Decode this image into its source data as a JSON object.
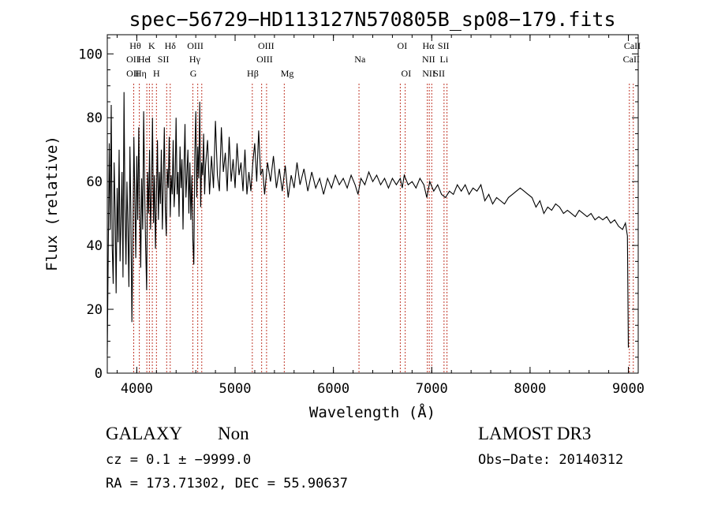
{
  "chart_data": {
    "type": "line",
    "title": "spec−56729−HD113127N570805B_sp08−179.fits",
    "xlabel": "Wavelength (Å)",
    "ylabel": "Flux (relative)",
    "xlim": [
      3700,
      9100
    ],
    "ylim": [
      0,
      106
    ],
    "xticks": [
      4000,
      5000,
      6000,
      7000,
      8000,
      9000
    ],
    "yticks": [
      0,
      20,
      40,
      60,
      80,
      100
    ],
    "grid": false,
    "series": [
      {
        "name": "spectrum",
        "points": [
          [
            3700,
            6
          ],
          [
            3710,
            38
          ],
          [
            3720,
            72
          ],
          [
            3730,
            45
          ],
          [
            3740,
            84
          ],
          [
            3750,
            40
          ],
          [
            3760,
            28
          ],
          [
            3770,
            66
          ],
          [
            3780,
            50
          ],
          [
            3790,
            25
          ],
          [
            3800,
            58
          ],
          [
            3810,
            41
          ],
          [
            3820,
            70
          ],
          [
            3830,
            35
          ],
          [
            3840,
            48
          ],
          [
            3850,
            63
          ],
          [
            3860,
            30
          ],
          [
            3870,
            88
          ],
          [
            3880,
            52
          ],
          [
            3890,
            34
          ],
          [
            3900,
            60
          ],
          [
            3910,
            45
          ],
          [
            3920,
            27
          ],
          [
            3930,
            71
          ],
          [
            3940,
            50
          ],
          [
            3950,
            16
          ],
          [
            3960,
            40
          ],
          [
            3970,
            74
          ],
          [
            3980,
            55
          ],
          [
            3990,
            36
          ],
          [
            4000,
            68
          ],
          [
            4010,
            48
          ],
          [
            4020,
            77
          ],
          [
            4030,
            52
          ],
          [
            4040,
            33
          ],
          [
            4050,
            61
          ],
          [
            4060,
            45
          ],
          [
            4070,
            82
          ],
          [
            4080,
            57
          ],
          [
            4090,
            40
          ],
          [
            4100,
            26
          ],
          [
            4110,
            63
          ],
          [
            4120,
            50
          ],
          [
            4130,
            70
          ],
          [
            4140,
            45
          ],
          [
            4150,
            58
          ],
          [
            4160,
            80
          ],
          [
            4170,
            47
          ],
          [
            4180,
            62
          ],
          [
            4190,
            39
          ],
          [
            4200,
            55
          ],
          [
            4210,
            73
          ],
          [
            4220,
            48
          ],
          [
            4230,
            63
          ],
          [
            4240,
            53
          ],
          [
            4250,
            70
          ],
          [
            4260,
            45
          ],
          [
            4270,
            60
          ],
          [
            4280,
            77
          ],
          [
            4290,
            52
          ],
          [
            4300,
            43
          ],
          [
            4310,
            64
          ],
          [
            4320,
            58
          ],
          [
            4330,
            74
          ],
          [
            4340,
            49
          ],
          [
            4350,
            62
          ],
          [
            4360,
            56
          ],
          [
            4370,
            73
          ],
          [
            4380,
            52
          ],
          [
            4390,
            60
          ],
          [
            4400,
            80
          ],
          [
            4410,
            56
          ],
          [
            4420,
            63
          ],
          [
            4430,
            49
          ],
          [
            4440,
            71
          ],
          [
            4450,
            58
          ],
          [
            4460,
            67
          ],
          [
            4470,
            45
          ],
          [
            4480,
            64
          ],
          [
            4490,
            78
          ],
          [
            4500,
            55
          ],
          [
            4510,
            62
          ],
          [
            4520,
            70
          ],
          [
            4530,
            50
          ],
          [
            4540,
            66
          ],
          [
            4550,
            48
          ],
          [
            4560,
            62
          ],
          [
            4570,
            42
          ],
          [
            4580,
            34
          ],
          [
            4590,
            68
          ],
          [
            4600,
            82
          ],
          [
            4610,
            55
          ],
          [
            4620,
            71
          ],
          [
            4630,
            61
          ],
          [
            4640,
            85
          ],
          [
            4650,
            52
          ],
          [
            4660,
            66
          ],
          [
            4670,
            62
          ],
          [
            4680,
            75
          ],
          [
            4690,
            56
          ],
          [
            4700,
            65
          ],
          [
            4720,
            73
          ],
          [
            4740,
            56
          ],
          [
            4760,
            68
          ],
          [
            4780,
            58
          ],
          [
            4800,
            79
          ],
          [
            4820,
            62
          ],
          [
            4840,
            57
          ],
          [
            4860,
            77
          ],
          [
            4880,
            63
          ],
          [
            4900,
            69
          ],
          [
            4920,
            57
          ],
          [
            4940,
            74
          ],
          [
            4960,
            60
          ],
          [
            4980,
            67
          ],
          [
            5000,
            58
          ],
          [
            5020,
            72
          ],
          [
            5040,
            62
          ],
          [
            5060,
            66
          ],
          [
            5080,
            57
          ],
          [
            5100,
            70
          ],
          [
            5120,
            56
          ],
          [
            5140,
            63
          ],
          [
            5160,
            57
          ],
          [
            5180,
            66
          ],
          [
            5200,
            72
          ],
          [
            5220,
            60
          ],
          [
            5240,
            76
          ],
          [
            5260,
            62
          ],
          [
            5280,
            64
          ],
          [
            5300,
            56
          ],
          [
            5330,
            66
          ],
          [
            5360,
            60
          ],
          [
            5390,
            68
          ],
          [
            5420,
            58
          ],
          [
            5450,
            64
          ],
          [
            5480,
            57
          ],
          [
            5510,
            65
          ],
          [
            5540,
            55
          ],
          [
            5570,
            62
          ],
          [
            5600,
            58
          ],
          [
            5630,
            66
          ],
          [
            5660,
            59
          ],
          [
            5700,
            64
          ],
          [
            5740,
            57
          ],
          [
            5780,
            63
          ],
          [
            5820,
            58
          ],
          [
            5860,
            61
          ],
          [
            5900,
            56
          ],
          [
            5940,
            61
          ],
          [
            5980,
            58
          ],
          [
            6020,
            62
          ],
          [
            6060,
            59
          ],
          [
            6100,
            61
          ],
          [
            6140,
            58
          ],
          [
            6180,
            62
          ],
          [
            6220,
            59
          ],
          [
            6250,
            56
          ],
          [
            6280,
            61
          ],
          [
            6320,
            59
          ],
          [
            6360,
            63
          ],
          [
            6400,
            60
          ],
          [
            6440,
            62
          ],
          [
            6480,
            59
          ],
          [
            6520,
            61
          ],
          [
            6560,
            58
          ],
          [
            6600,
            61
          ],
          [
            6640,
            59
          ],
          [
            6680,
            61
          ],
          [
            6700,
            58
          ],
          [
            6720,
            62
          ],
          [
            6760,
            59
          ],
          [
            6800,
            60
          ],
          [
            6840,
            58
          ],
          [
            6880,
            61
          ],
          [
            6920,
            59
          ],
          [
            6950,
            55
          ],
          [
            6980,
            60
          ],
          [
            7020,
            57
          ],
          [
            7060,
            59
          ],
          [
            7100,
            56
          ],
          [
            7140,
            55
          ],
          [
            7180,
            57
          ],
          [
            7220,
            56
          ],
          [
            7260,
            59
          ],
          [
            7300,
            57
          ],
          [
            7340,
            59
          ],
          [
            7380,
            56
          ],
          [
            7420,
            58
          ],
          [
            7460,
            57
          ],
          [
            7500,
            59
          ],
          [
            7540,
            54
          ],
          [
            7580,
            56
          ],
          [
            7620,
            53
          ],
          [
            7660,
            55
          ],
          [
            7700,
            54
          ],
          [
            7740,
            53
          ],
          [
            7780,
            55
          ],
          [
            7820,
            56
          ],
          [
            7860,
            57
          ],
          [
            7900,
            58
          ],
          [
            7940,
            57
          ],
          [
            7980,
            56
          ],
          [
            8020,
            55
          ],
          [
            8060,
            52
          ],
          [
            8100,
            54
          ],
          [
            8140,
            50
          ],
          [
            8180,
            52
          ],
          [
            8220,
            51
          ],
          [
            8260,
            53
          ],
          [
            8300,
            52
          ],
          [
            8340,
            50
          ],
          [
            8380,
            51
          ],
          [
            8420,
            50
          ],
          [
            8460,
            49
          ],
          [
            8500,
            51
          ],
          [
            8540,
            50
          ],
          [
            8580,
            49
          ],
          [
            8620,
            50
          ],
          [
            8660,
            48
          ],
          [
            8700,
            49
          ],
          [
            8740,
            48
          ],
          [
            8780,
            49
          ],
          [
            8820,
            47
          ],
          [
            8860,
            48
          ],
          [
            8900,
            46
          ],
          [
            8940,
            45
          ],
          [
            8970,
            47
          ],
          [
            8990,
            43
          ],
          [
            9000,
            8
          ]
        ]
      }
    ],
    "lines": [
      {
        "x": 3969,
        "labels": [
          "Hθ",
          "OII",
          "OII"
        ]
      },
      {
        "x": 4026,
        "labels": [
          "He",
          "Hη"
        ]
      },
      {
        "x": 4102,
        "labels": [
          "Hδ"
        ]
      },
      {
        "x": 4128,
        "labels": [
          "He",
          "Hη"
        ]
      },
      {
        "x": 4158,
        "labels": [
          "K",
          "I"
        ]
      },
      {
        "x": 4200,
        "labels": [
          "H",
          "S"
        ]
      },
      {
        "x": 4304,
        "labels": [
          "Hδ",
          "SII"
        ]
      },
      {
        "x": 4340,
        "labels": [
          "SII"
        ]
      },
      {
        "x": 4570,
        "labels": [
          "OIII",
          "Hγ",
          "G"
        ]
      },
      {
        "x": 4620,
        "labels": [
          "OIII"
        ]
      },
      {
        "x": 4661,
        "labels": [
          "OIII"
        ]
      },
      {
        "x": 5175,
        "labels": [
          "Hβ"
        ]
      },
      {
        "x": 5270,
        "labels": [
          "OIII",
          "OIII"
        ]
      },
      {
        "x": 5320,
        "labels": [
          "OIII"
        ]
      },
      {
        "x": 5500,
        "labels": [
          "Mg"
        ]
      },
      {
        "x": 6260,
        "labels": [
          "Na"
        ]
      },
      {
        "x": 6680,
        "labels": [
          "OI"
        ]
      },
      {
        "x": 6730,
        "labels": [
          "OI"
        ]
      },
      {
        "x": 6955,
        "labels": [
          "Hα",
          "NII",
          "NII"
        ]
      },
      {
        "x": 6975,
        "labels": [
          "NII"
        ]
      },
      {
        "x": 7000,
        "labels": [
          "SII"
        ]
      },
      {
        "x": 7125,
        "labels": [
          "SII",
          "Li",
          "SII"
        ]
      },
      {
        "x": 7155,
        "labels": [
          "SII"
        ]
      },
      {
        "x": 9010,
        "labels": [
          "CaII",
          "CaII"
        ]
      },
      {
        "x": 9050,
        "labels": [
          "CaII"
        ]
      }
    ],
    "label_rows": [
      [
        {
          "x": 3985,
          "text": "Hθ"
        },
        {
          "x": 4152,
          "text": "K"
        },
        {
          "x": 4340,
          "text": "Hδ"
        },
        {
          "x": 4595,
          "text": "OIII"
        },
        {
          "x": 5315,
          "text": "OIII"
        },
        {
          "x": 6700,
          "text": "OI"
        },
        {
          "x": 6965,
          "text": "Hα"
        },
        {
          "x": 7120,
          "text": "SII"
        },
        {
          "x": 9040,
          "text": "CaII"
        }
      ],
      [
        {
          "x": 3960,
          "text": "OII"
        },
        {
          "x": 4068,
          "text": "He"
        },
        {
          "x": 4128,
          "text": "I"
        },
        {
          "x": 4270,
          "text": "SII"
        },
        {
          "x": 4590,
          "text": "Hγ"
        },
        {
          "x": 5300,
          "text": "OIII"
        },
        {
          "x": 6270,
          "text": "Na"
        },
        {
          "x": 6968,
          "text": "NII"
        },
        {
          "x": 7125,
          "text": "Li"
        },
        {
          "x": 9030,
          "text": "CaII"
        }
      ],
      [
        {
          "x": 3960,
          "text": "OII"
        },
        {
          "x": 4040,
          "text": "Hη"
        },
        {
          "x": 4200,
          "text": "H"
        },
        {
          "x": 4575,
          "text": "G"
        },
        {
          "x": 5180,
          "text": "Hβ"
        },
        {
          "x": 5530,
          "text": "Mg"
        },
        {
          "x": 6740,
          "text": "OI"
        },
        {
          "x": 6970,
          "text": "NII"
        },
        {
          "x": 7075,
          "text": "SII"
        }
      ]
    ]
  },
  "info": {
    "object_class": "GALAXY",
    "subclass": "Non",
    "survey": "LAMOST DR3",
    "cz_line": "cz = 0.1 ± −9999.0",
    "obs_date_line": "Obs−Date: 20140312",
    "coords_line": "RA = 173.71302, DEC =  55.90637"
  },
  "colors": {
    "axis": "#000000",
    "spectrum": "#000000",
    "line_marker": "#c0392b"
  }
}
